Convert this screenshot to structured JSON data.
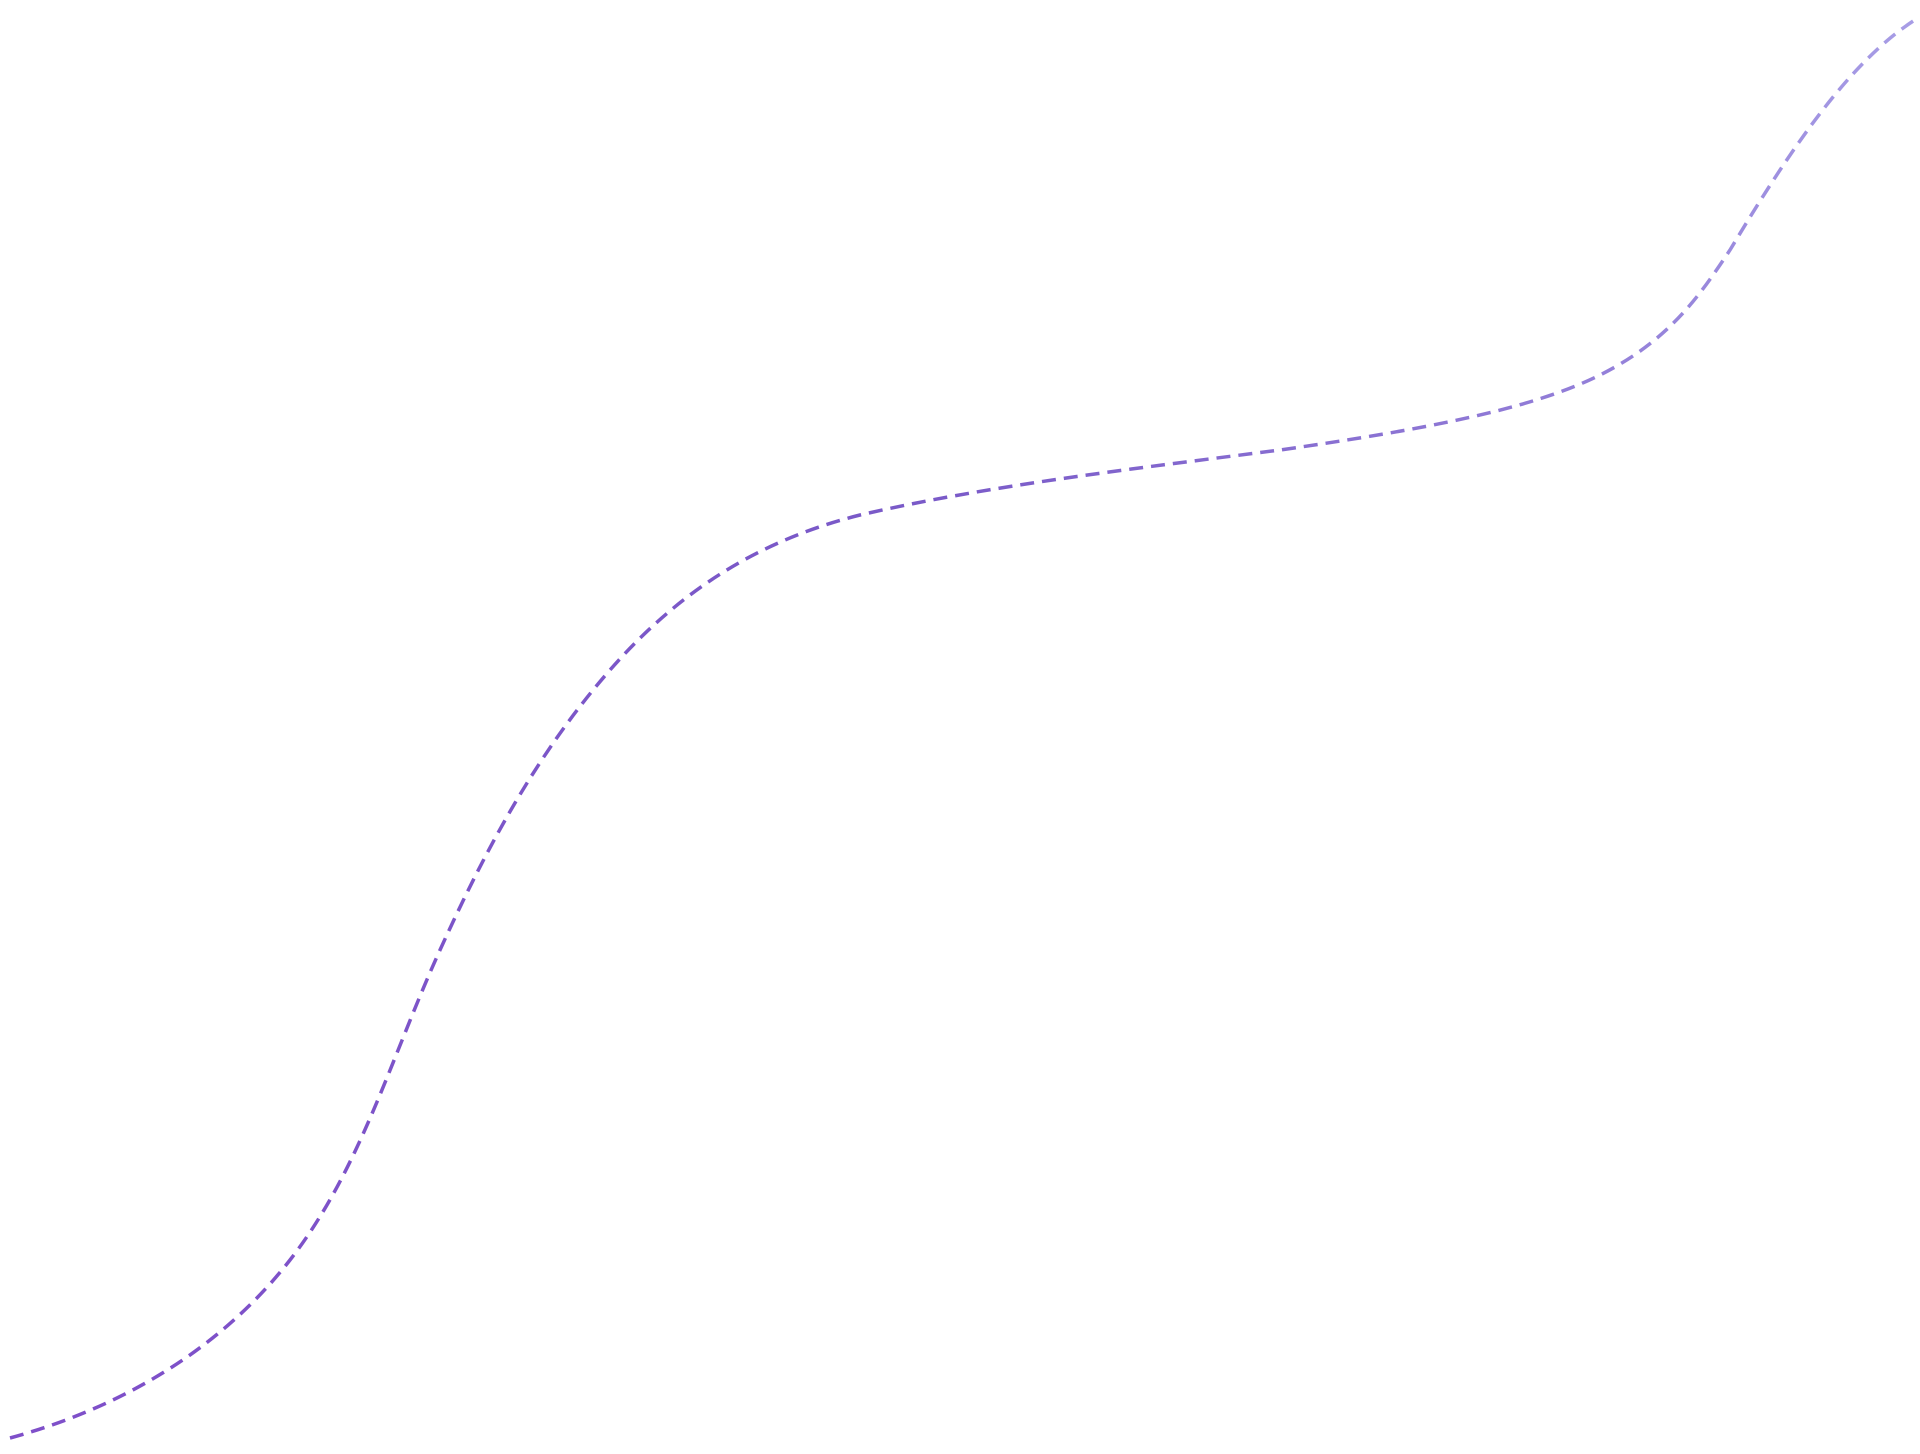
{
  "decoration": {
    "kind": "dashed-wave-line",
    "colors": {
      "start": "#7f4fc9",
      "middle": "#7a5ac8",
      "end": "#a89ee6",
      "background": "#ffffff"
    }
  }
}
